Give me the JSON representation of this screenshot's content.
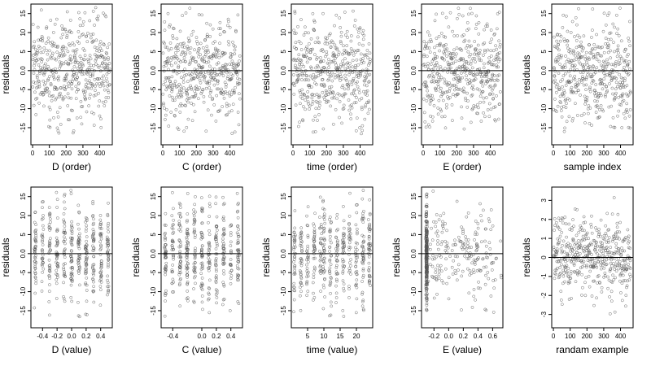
{
  "chart_data": [
    {
      "type": "scatter",
      "xlabel": "D (order)",
      "ylabel": "residuals",
      "xlim": [
        -10,
        475
      ],
      "ylim": [
        -19.5,
        17.5
      ],
      "x_ticks": [
        0,
        100,
        200,
        300,
        400
      ],
      "y_ticks": [
        15,
        10,
        5,
        0,
        -5,
        -10,
        -15
      ],
      "x_tick_labels": [
        "0",
        "100",
        "200",
        "300",
        "400"
      ],
      "y_tick_labels": [
        "15",
        "10",
        "5",
        "0.0",
        "-5",
        "-10",
        "-15"
      ],
      "reference_line_y": 0,
      "points": {
        "n": 460,
        "pattern": "order",
        "spread": 6.5,
        "xmin": 1,
        "xmax": 460
      }
    },
    {
      "type": "scatter",
      "xlabel": "C (order)",
      "ylabel": "residuals",
      "xlim": [
        -10,
        475
      ],
      "ylim": [
        -19.5,
        17.5
      ],
      "x_ticks": [
        0,
        100,
        200,
        300,
        400
      ],
      "y_ticks": [
        15,
        10,
        5,
        0,
        -5,
        -10,
        -15
      ],
      "x_tick_labels": [
        "0",
        "100",
        "200",
        "300",
        "400"
      ],
      "y_tick_labels": [
        "15",
        "10",
        "5",
        "0.0",
        "-5",
        "-10",
        "-15"
      ],
      "reference_line_y": 0,
      "points": {
        "n": 460,
        "pattern": "order",
        "spread": 6.5,
        "xmin": 1,
        "xmax": 460
      }
    },
    {
      "type": "scatter",
      "xlabel": "time (order)",
      "ylabel": "residuals",
      "xlim": [
        -10,
        475
      ],
      "ylim": [
        -19.5,
        17.5
      ],
      "x_ticks": [
        0,
        100,
        200,
        300,
        400
      ],
      "y_ticks": [
        15,
        10,
        5,
        0,
        -5,
        -10,
        -15
      ],
      "x_tick_labels": [
        "0",
        "100",
        "200",
        "300",
        "400"
      ],
      "y_tick_labels": [
        "15",
        "10",
        "5",
        "0.0",
        "-5",
        "-10",
        "-15"
      ],
      "reference_line_y": 0,
      "points": {
        "n": 460,
        "pattern": "order",
        "spread": 6.5,
        "xmin": 1,
        "xmax": 460
      }
    },
    {
      "type": "scatter",
      "xlabel": "E (order)",
      "ylabel": "residuals",
      "xlim": [
        -10,
        475
      ],
      "ylim": [
        -19.5,
        17.5
      ],
      "x_ticks": [
        0,
        100,
        200,
        300,
        400
      ],
      "y_ticks": [
        15,
        10,
        5,
        0,
        -5,
        -10,
        -15
      ],
      "x_tick_labels": [
        "0",
        "100",
        "200",
        "300",
        "400"
      ],
      "y_tick_labels": [
        "15",
        "10",
        "5",
        "0.0",
        "-5",
        "-10",
        "-15"
      ],
      "reference_line_y": 0,
      "points": {
        "n": 460,
        "pattern": "order",
        "spread": 6.5,
        "xmin": 1,
        "xmax": 460
      }
    },
    {
      "type": "scatter",
      "xlabel": "sample index",
      "ylabel": "residuals",
      "xlim": [
        -10,
        475
      ],
      "ylim": [
        -19.5,
        17.5
      ],
      "x_ticks": [
        0,
        100,
        200,
        300,
        400
      ],
      "y_ticks": [
        15,
        10,
        5,
        0,
        -5,
        -10,
        -15
      ],
      "x_tick_labels": [
        "0",
        "100",
        "200",
        "300",
        "400"
      ],
      "y_tick_labels": [
        "15",
        "10",
        "5",
        "0.0",
        "-5",
        "-10",
        "-15"
      ],
      "reference_line_y": 0,
      "points": {
        "n": 460,
        "pattern": "order",
        "spread": 6.5,
        "xmin": 1,
        "xmax": 460
      }
    },
    {
      "type": "scatter",
      "xlabel": "D (value)",
      "ylabel": "residuals",
      "xlim": [
        -0.56,
        0.56
      ],
      "ylim": [
        -19.5,
        17.5
      ],
      "x_ticks": [
        -0.4,
        -0.2,
        0,
        0.2,
        0.4
      ],
      "y_ticks": [
        15,
        10,
        5,
        0,
        -5,
        -10,
        -15
      ],
      "x_tick_labels": [
        "-0.4",
        "-0.2",
        "0.0",
        "0.2",
        "0.4"
      ],
      "y_tick_labels": [
        "15",
        "10",
        "5",
        "0.0",
        "-5",
        "-10",
        "-15"
      ],
      "reference_line_y": 0,
      "points": {
        "n": 460,
        "pattern": "columns",
        "spread": 6.5,
        "columns": [
          -0.5,
          -0.4,
          -0.3,
          -0.2,
          -0.1,
          0.0,
          0.1,
          0.2,
          0.3,
          0.4,
          0.5
        ],
        "jitter": 0.012
      }
    },
    {
      "type": "scatter",
      "xlabel": "C (value)",
      "ylabel": "residuals",
      "xlim": [
        -0.56,
        0.56
      ],
      "ylim": [
        -19.5,
        17.5
      ],
      "x_ticks": [
        -0.4,
        0,
        0.2,
        0.4
      ],
      "y_ticks": [
        15,
        10,
        5,
        0,
        -5,
        -10,
        -15
      ],
      "x_tick_labels": [
        "-0.4",
        "0.0",
        "0.2",
        "0.4"
      ],
      "y_tick_labels": [
        "15",
        "10",
        "5",
        "0.0",
        "-5",
        "-10",
        "-15"
      ],
      "reference_line_y": 0,
      "points": {
        "n": 460,
        "pattern": "columns",
        "spread": 6.5,
        "columns": [
          -0.5,
          -0.4,
          -0.3,
          -0.2,
          -0.1,
          0.0,
          0.1,
          0.2,
          0.3,
          0.4,
          0.5
        ],
        "jitter": 0.012
      }
    },
    {
      "type": "scatter",
      "xlabel": "time (value)",
      "ylabel": "residuals",
      "xlim": [
        0,
        25
      ],
      "ylim": [
        -19.5,
        17.5
      ],
      "x_ticks": [
        5,
        10,
        15,
        20
      ],
      "y_ticks": [
        15,
        10,
        5,
        0,
        -5,
        -10,
        -15
      ],
      "x_tick_labels": [
        "5",
        "10",
        "15",
        "20"
      ],
      "y_tick_labels": [
        "15",
        "10",
        "5",
        "0.0",
        "-5",
        "-10",
        "-15"
      ],
      "reference_line_y": 0,
      "points": {
        "n": 460,
        "pattern": "columns",
        "spread": 6.5,
        "columns": [
          1,
          3,
          5,
          7,
          9,
          10,
          12,
          14,
          16,
          18,
          20,
          22,
          24
        ],
        "jitter": 0.3
      }
    },
    {
      "type": "scatter",
      "xlabel": "E (value)",
      "ylabel": "residuals",
      "xlim": [
        -0.37,
        0.74
      ],
      "ylim": [
        -19.5,
        17.5
      ],
      "x_ticks": [
        -0.2,
        0,
        0.2,
        0.4,
        0.6
      ],
      "y_ticks": [
        15,
        10,
        5,
        0,
        -5,
        -10,
        -15
      ],
      "x_tick_labels": [
        "-0.2",
        "0.0",
        "0.2",
        "0.4",
        "0.6"
      ],
      "y_tick_labels": [
        "15",
        "10",
        "5",
        "0.0",
        "-5",
        "-10",
        "-15"
      ],
      "reference_line_y": 0,
      "points": {
        "n": 460,
        "pattern": "skewed",
        "spread": 6.5,
        "xmin": -0.3,
        "xmax": 0.72,
        "cluster_x": -0.3,
        "cluster_frac": 0.55
      }
    },
    {
      "type": "scatter",
      "xlabel": "randam example",
      "ylabel": "residuals",
      "xlim": [
        -10,
        475
      ],
      "ylim": [
        -3.7,
        3.7
      ],
      "x_ticks": [
        0,
        100,
        200,
        300,
        400
      ],
      "y_ticks": [
        3,
        2,
        1,
        0,
        -1,
        -2,
        -3
      ],
      "x_tick_labels": [
        "0",
        "100",
        "200",
        "300",
        "400"
      ],
      "y_tick_labels": [
        "3",
        "2",
        "1",
        "0",
        "-1",
        "-2",
        "-3"
      ],
      "reference_line_y": 0,
      "points": {
        "n": 460,
        "pattern": "order",
        "spread": 1.0,
        "xmin": 1,
        "xmax": 460
      }
    }
  ],
  "style": {
    "point_color": "#555555",
    "axis_color": "#000000",
    "background": "#ffffff"
  }
}
